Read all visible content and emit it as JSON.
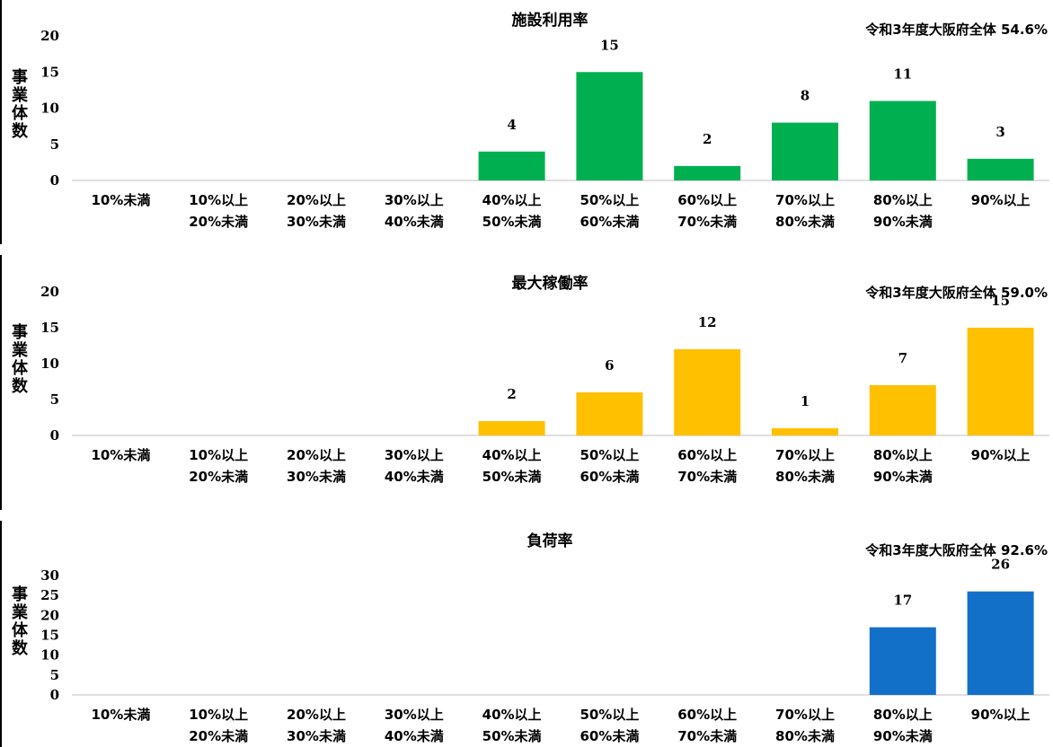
{
  "chart_data": [
    {
      "type": "bar",
      "title": "施設利用率",
      "annotation": "令和3年度大阪府全体 54.6%",
      "ylabel": "事業体数",
      "categories": [
        [
          "10%未満"
        ],
        [
          "10%以上",
          "20%未満"
        ],
        [
          "20%以上",
          "30%未満"
        ],
        [
          "30%以上",
          "40%未満"
        ],
        [
          "40%以上",
          "50%未満"
        ],
        [
          "50%以上",
          "60%未満"
        ],
        [
          "60%以上",
          "70%未満"
        ],
        [
          "70%以上",
          "80%未満"
        ],
        [
          "80%以上",
          "90%未満"
        ],
        [
          "90%以上"
        ]
      ],
      "values": [
        0,
        0,
        0,
        0,
        4,
        15,
        2,
        8,
        11,
        3
      ],
      "ylim": [
        0,
        20
      ],
      "yticks": [
        0,
        5,
        10,
        15,
        20
      ],
      "grid": false,
      "color": "#00B050"
    },
    {
      "type": "bar",
      "title": "最大稼働率",
      "annotation": "令和3年度大阪府全体 59.0%",
      "ylabel": "事業体数",
      "categories": [
        [
          "10%未満"
        ],
        [
          "10%以上",
          "20%未満"
        ],
        [
          "20%以上",
          "30%未満"
        ],
        [
          "30%以上",
          "40%未満"
        ],
        [
          "40%以上",
          "50%未満"
        ],
        [
          "50%以上",
          "60%未満"
        ],
        [
          "60%以上",
          "70%未満"
        ],
        [
          "70%以上",
          "80%未満"
        ],
        [
          "80%以上",
          "90%未満"
        ],
        [
          "90%以上"
        ]
      ],
      "values": [
        0,
        0,
        0,
        0,
        2,
        6,
        12,
        1,
        7,
        15
      ],
      "ylim": [
        0,
        20
      ],
      "yticks": [
        0,
        5,
        10,
        15,
        20
      ],
      "grid": false,
      "color": "#FFC000"
    },
    {
      "type": "bar",
      "title": "負荷率",
      "annotation": "令和3年度大阪府全体 92.6%",
      "ylabel": "事業体数",
      "categories": [
        [
          "10%未満"
        ],
        [
          "10%以上",
          "20%未満"
        ],
        [
          "20%以上",
          "30%未満"
        ],
        [
          "30%以上",
          "40%未満"
        ],
        [
          "40%以上",
          "50%未満"
        ],
        [
          "50%以上",
          "60%未満"
        ],
        [
          "60%以上",
          "70%未満"
        ],
        [
          "70%以上",
          "80%未満"
        ],
        [
          "80%以上",
          "90%未満"
        ],
        [
          "90%以上"
        ]
      ],
      "values": [
        0,
        0,
        0,
        0,
        0,
        0,
        0,
        0,
        17,
        26
      ],
      "ylim": [
        0,
        30
      ],
      "yticks": [
        0,
        5,
        10,
        15,
        20,
        25,
        30
      ],
      "grid": false,
      "color": "#1370C9"
    }
  ]
}
